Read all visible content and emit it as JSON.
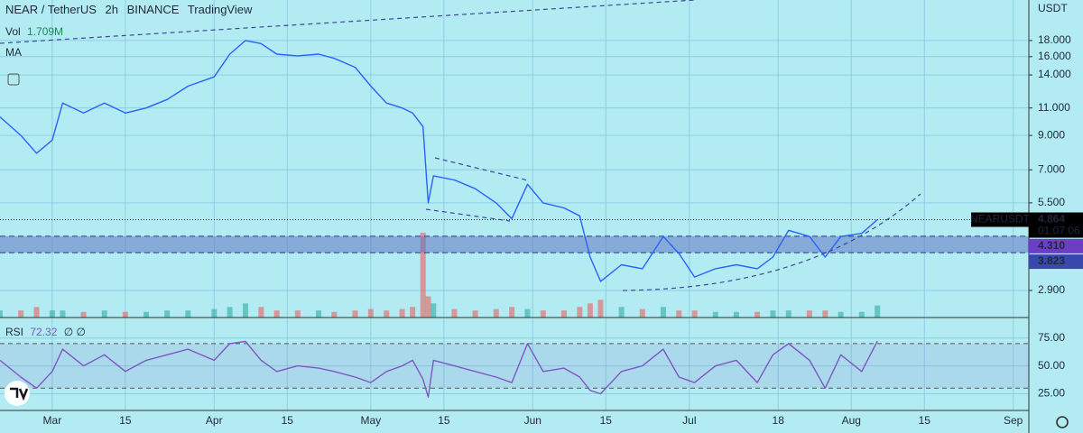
{
  "chart_data": [
    {
      "type": "line",
      "symbol": "NEAR / TetherUS",
      "interval": "2h",
      "exchange": "BINANCE",
      "source": "TradingView",
      "currency": "USDT",
      "indicator_label": "MA",
      "log_scale": true,
      "grid": true,
      "x": [
        "Feb 19",
        "Feb 23",
        "Feb 26",
        "Mar 1",
        "Mar 3",
        "Mar 7",
        "Mar 11",
        "Mar 15",
        "Mar 19",
        "Mar 23",
        "Mar 27",
        "Apr 1",
        "Apr 4",
        "Apr 7",
        "Apr 10",
        "Apr 13",
        "Apr 17",
        "Apr 21",
        "Apr 24",
        "Apr 28",
        "May 1",
        "May 4",
        "May 7",
        "May 9",
        "May 11",
        "May 12",
        "May 13",
        "May 17",
        "May 21",
        "May 25",
        "May 28",
        "May 31",
        "Jun 3",
        "Jun 7",
        "Jun 10",
        "Jun 12",
        "Jun 14",
        "Jun 18",
        "Jun 22",
        "Jun 26",
        "Jun 29",
        "Jul 2",
        "Jul 6",
        "Jul 10",
        "Jul 14",
        "Jul 17",
        "Jul 20",
        "Jul 24",
        "Jul 27",
        "Jul 30",
        "Aug 3",
        "Aug 6"
      ],
      "xlim": [
        "Feb 19",
        "Sep 4"
      ],
      "xticks": [
        {
          "value": "Mar 1",
          "label": "Mar"
        },
        {
          "value": "Mar 15",
          "label": "15"
        },
        {
          "value": "Apr 1",
          "label": "Apr"
        },
        {
          "value": "Apr 15",
          "label": "15"
        },
        {
          "value": "May 1",
          "label": "May"
        },
        {
          "value": "May 15",
          "label": "15"
        },
        {
          "value": "Jun 1",
          "label": "Jun"
        },
        {
          "value": "Jun 15",
          "label": "15"
        },
        {
          "value": "Jul 1",
          "label": "Jul"
        },
        {
          "value": "Jul 18",
          "label": "18"
        },
        {
          "value": "Aug 1",
          "label": "Aug"
        },
        {
          "value": "Aug 15",
          "label": "15"
        },
        {
          "value": "Sep 1",
          "label": "Sep"
        }
      ],
      "ylim": [
        2.38,
        24.2
      ],
      "yticks": [
        {
          "value": 18,
          "label": "18.000"
        },
        {
          "value": 16,
          "label": "16.000"
        },
        {
          "value": 14,
          "label": "14.000"
        },
        {
          "value": 11,
          "label": "11.000"
        },
        {
          "value": 9,
          "label": "9.000"
        },
        {
          "value": 7,
          "label": "7.000"
        },
        {
          "value": 5.5,
          "label": "5.500"
        },
        {
          "value": 2.9,
          "label": "2.900"
        }
      ],
      "series": [
        {
          "name": "NEARUSDT",
          "color": "#2962ff",
          "values": [
            10.3,
            9.0,
            7.9,
            8.7,
            11.4,
            10.6,
            11.4,
            10.6,
            11.0,
            11.7,
            12.9,
            13.8,
            16.3,
            18.0,
            17.6,
            16.3,
            16.1,
            16.3,
            15.8,
            14.8,
            12.9,
            11.4,
            11.0,
            10.6,
            9.6,
            5.5,
            6.7,
            6.5,
            6.1,
            5.5,
            4.9,
            6.3,
            5.5,
            5.3,
            5.0,
            3.7,
            3.1,
            3.5,
            3.4,
            4.3,
            3.8,
            3.2,
            3.4,
            3.5,
            3.4,
            3.7,
            4.5,
            4.3,
            3.7,
            4.3,
            4.4,
            4.864
          ]
        }
      ],
      "countdown": "01:07:06",
      "zone": {
        "color": "#5c6bc0",
        "values": [
          {
            "value": 4.31,
            "label": "4.310"
          },
          {
            "value": 3.823,
            "label": "3.823"
          }
        ]
      },
      "volume": {
        "name": "Vol",
        "label": "1.709M",
        "up_color": "#26a69a",
        "down_color": "#ef5350",
        "ylim": [
          0,
          12
        ],
        "values": [
          1,
          1,
          1.5,
          1,
          1,
          0.8,
          1,
          0.8,
          0.8,
          1,
          1,
          1.2,
          1.5,
          2,
          1.5,
          1,
          1,
          1,
          0.8,
          1,
          1.2,
          1,
          1.2,
          1.5,
          12,
          3,
          2,
          1.2,
          1,
          1.2,
          1.5,
          1.2,
          1,
          1,
          1.5,
          2,
          2.5,
          1.5,
          1.2,
          1.5,
          1,
          1,
          0.8,
          0.8,
          0.8,
          1,
          1,
          1,
          1,
          0.8,
          0.8,
          1.709
        ]
      }
    },
    {
      "type": "line",
      "params": "∅ ∅",
      "ylim": [
        10,
        91
      ],
      "yticks": [
        {
          "value": 75,
          "label": "75.00"
        },
        {
          "value": 50,
          "label": "50.00"
        },
        {
          "value": 25,
          "label": "25.00"
        }
      ],
      "bands": [
        70,
        30
      ],
      "series": [
        {
          "name": "RSI",
          "color": "#7e57c2",
          "values": [
            55,
            40,
            30,
            45,
            65,
            50,
            60,
            45,
            55,
            60,
            65,
            55,
            70,
            72,
            55,
            45,
            50,
            48,
            45,
            40,
            35,
            45,
            50,
            55,
            38,
            22,
            55,
            50,
            45,
            40,
            35,
            70,
            45,
            48,
            40,
            28,
            25,
            45,
            50,
            65,
            40,
            35,
            50,
            55,
            35,
            60,
            70,
            55,
            30,
            60,
            45,
            72.32
          ]
        }
      ]
    }
  ]
}
